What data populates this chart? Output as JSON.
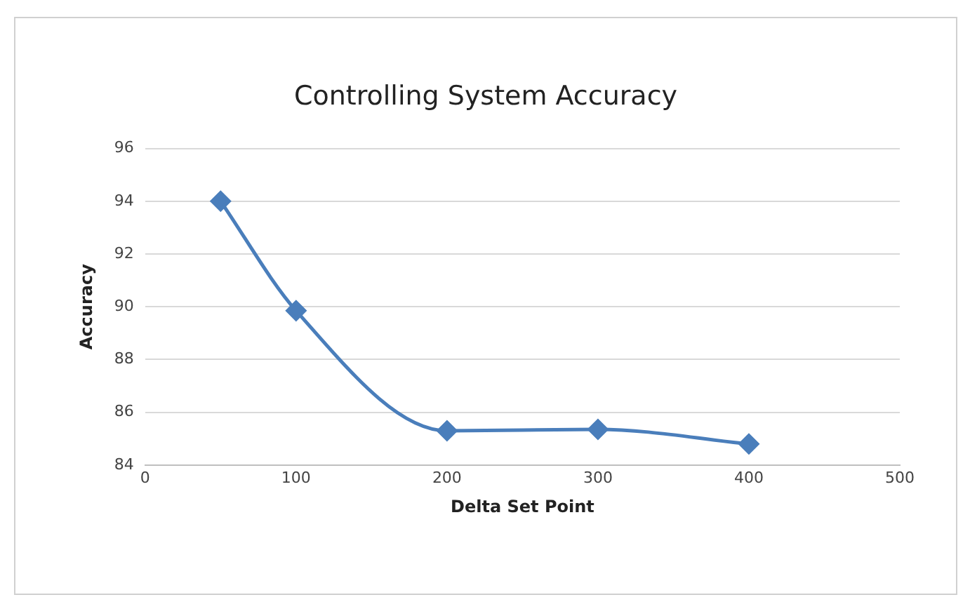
{
  "chart_data": {
    "type": "line",
    "title": "Controlling System Accuracy",
    "xlabel": "Delta Set Point",
    "ylabel": "Accuracy",
    "x": [
      50,
      100,
      200,
      300,
      400
    ],
    "series": [
      {
        "color": "#4a7ebb",
        "values": [
          94,
          89.85,
          85.3,
          85.35,
          84.8
        ]
      }
    ],
    "xlim": [
      0,
      500
    ],
    "xticks": [
      0,
      100,
      200,
      300,
      400,
      500
    ],
    "ylim": [
      84,
      96
    ],
    "yticks": [
      84,
      86,
      88,
      90,
      92,
      94,
      96
    ],
    "grid": "y",
    "legend": false,
    "marker": "diamond",
    "line_style": "solid"
  }
}
